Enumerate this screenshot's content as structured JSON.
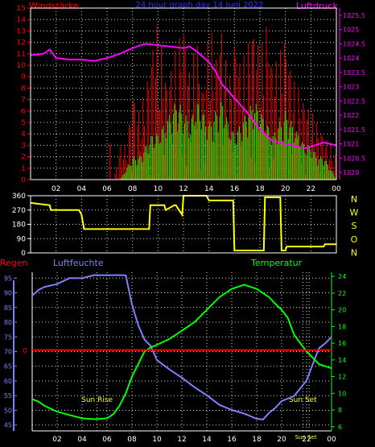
{
  "colors": {
    "background": "#000000",
    "frame": "#ffffff",
    "grid": "#ffffff",
    "wind_avg": "#00ff00",
    "wind_gust": "#ff0000",
    "pressure": "#ff00ff",
    "pressure_axis": "#ff00ff",
    "direction": "#ffff00",
    "humidity": "#8080ff",
    "temperature": "#00ff00",
    "rain": "#ff0000",
    "title": "#3030ff",
    "sun_label": "#ffff00"
  },
  "chart_data": [
    {
      "type": "bar",
      "title": "24 hour graph day 14 Juni 2022",
      "left_label": "Windstärke",
      "right_label": "Luftdruck",
      "x_ticks": [
        "02",
        "04",
        "06",
        "08",
        "10",
        "12",
        "14",
        "16",
        "18",
        "20",
        "22",
        "00"
      ],
      "x_unit": "hours",
      "x_range": [
        0,
        24
      ],
      "y_left_ticks": [
        "0",
        "1",
        "2",
        "3",
        "4",
        "5",
        "6",
        "7",
        "8",
        "9",
        "10",
        "11",
        "12",
        "13",
        "14",
        "15"
      ],
      "y_left_range": [
        0,
        15
      ],
      "y_right_ticks": [
        "1020",
        "1020.5",
        "1021",
        "1021.5",
        "1022",
        "1022.5",
        "1023",
        "1023.5",
        "1024",
        "1024.5",
        "1025",
        "1025.5"
      ],
      "y_right_range": [
        1019.75,
        1025.75
      ],
      "series": [
        {
          "name": "Windstärke",
          "kind": "avg",
          "x": [
            0,
            6.5,
            7,
            7.5,
            8,
            8.5,
            9,
            9.5,
            10,
            10.5,
            11,
            11.5,
            12,
            12.5,
            13,
            13.5,
            14,
            14.5,
            15,
            15.5,
            16,
            16.5,
            17,
            17.5,
            18,
            18.5,
            19,
            19.5,
            20,
            20.5,
            21,
            21.5,
            22,
            22.5,
            23,
            23.5,
            24
          ],
          "values": [
            0,
            0,
            0,
            1,
            2,
            2,
            3,
            4,
            4,
            5,
            6,
            7,
            6,
            5,
            7,
            6,
            5,
            6,
            7,
            5,
            4,
            5,
            6,
            7,
            6,
            5,
            4,
            5,
            6,
            5,
            4,
            3,
            3,
            2,
            2,
            1,
            0
          ]
        },
        {
          "name": "Windböen",
          "kind": "gust",
          "x": [
            0,
            6.5,
            7,
            7.5,
            8,
            8.5,
            9,
            9.5,
            10,
            10.5,
            11,
            11.5,
            12,
            12.5,
            13,
            13.5,
            14,
            14.5,
            15,
            15.5,
            16,
            16.5,
            17,
            17.5,
            18,
            18.5,
            19,
            19.5,
            20,
            20.5,
            21,
            21.5,
            22,
            22.5,
            23,
            23.5,
            24
          ],
          "values": [
            0,
            0,
            3,
            3,
            8,
            6,
            8,
            12,
            14,
            9,
            10,
            12,
            14,
            9,
            13,
            8,
            14,
            11,
            14,
            8,
            13,
            10,
            12,
            14,
            11,
            14,
            10,
            11,
            13,
            9,
            8,
            7,
            6,
            5,
            4,
            3,
            2
          ]
        },
        {
          "name": "Luftdruck",
          "kind": "pressure",
          "x": [
            0,
            1,
            1.5,
            2,
            3,
            4,
            5,
            6,
            7,
            8,
            9,
            10,
            11,
            12,
            12.5,
            13,
            14,
            14.5,
            15,
            16,
            17,
            18,
            19,
            20,
            21,
            21.5,
            22,
            23,
            24
          ],
          "values": [
            1024.1,
            1024.15,
            1024.3,
            1024.0,
            1023.95,
            1023.95,
            1023.9,
            1024.0,
            1024.15,
            1024.35,
            1024.5,
            1024.45,
            1024.4,
            1024.35,
            1024.4,
            1024.25,
            1023.85,
            1023.55,
            1023.1,
            1022.6,
            1022.1,
            1021.5,
            1021.1,
            1021.0,
            1020.9,
            1020.85,
            1020.9,
            1021.05,
            1020.95
          ]
        }
      ]
    },
    {
      "type": "line",
      "x_range": [
        0,
        24
      ],
      "y_left_ticks": [
        "0",
        "90",
        "180",
        "270",
        "360"
      ],
      "y_left_range": [
        0,
        360
      ],
      "right_labels": [
        "N",
        "W",
        "S",
        "O",
        "N"
      ],
      "series": [
        {
          "name": "Windrichtung",
          "x": [
            0,
            1.5,
            1.6,
            3.8,
            4,
            4.2,
            9.3,
            9.4,
            10.5,
            10.6,
            11.3,
            11.4,
            11.9,
            12,
            13.8,
            14,
            15.9,
            16,
            18.3,
            18.4,
            19.6,
            19.7,
            20,
            20.1,
            23,
            23.1,
            24
          ],
          "values": [
            315,
            300,
            270,
            270,
            240,
            150,
            150,
            300,
            300,
            270,
            300,
            300,
            240,
            360,
            360,
            330,
            330,
            15,
            15,
            350,
            350,
            15,
            15,
            40,
            40,
            55,
            55
          ]
        }
      ]
    },
    {
      "type": "line",
      "left_label": "Regen",
      "humidity_label": "Luftfeuchte",
      "right_label": "Temperatur",
      "x_range": [
        0,
        24
      ],
      "x_ticks": [
        "02",
        "04",
        "06",
        "08",
        "10",
        "12",
        "14",
        "16",
        "18",
        "20",
        "22",
        "00"
      ],
      "y_humidity_ticks": [
        "45",
        "50",
        "55",
        "60",
        "65",
        "70",
        "75",
        "80",
        "85",
        "90",
        "95"
      ],
      "y_humidity_range": [
        43,
        97
      ],
      "rain_axis_tick": "0",
      "y_temp_ticks": [
        "6",
        "8",
        "10",
        "12",
        "14",
        "16",
        "18",
        "20",
        "22",
        "24"
      ],
      "y_temp_range": [
        5.5,
        24.5
      ],
      "annotations": [
        {
          "text": "Sun Rise",
          "x": 5.2
        },
        {
          "text": "Sun Set",
          "x": 21.7
        },
        {
          "text": "Sun Set",
          "x": 22.2
        }
      ],
      "series": [
        {
          "name": "Luftfeuchte",
          "x": [
            0,
            0.5,
            1,
            2,
            3,
            4,
            5,
            6,
            7,
            7.5,
            8,
            8.5,
            9,
            9.5,
            10,
            11,
            12,
            13,
            14,
            15,
            16,
            17,
            18,
            18.5,
            19,
            19.5,
            20,
            21,
            22,
            22.5,
            23,
            23.5,
            24
          ],
          "values": [
            89,
            91,
            92,
            93,
            95,
            95,
            96,
            96,
            96,
            96,
            86,
            79,
            74,
            72,
            67,
            64,
            61,
            58,
            55,
            52,
            50,
            49,
            47,
            47,
            49,
            51,
            53,
            55,
            60,
            66,
            71,
            73,
            75
          ]
        },
        {
          "name": "Temperatur",
          "x": [
            0,
            0.5,
            1,
            2,
            3,
            4,
            5,
            6,
            6.5,
            7,
            7.5,
            8,
            8.5,
            9,
            9.5,
            10,
            11,
            12,
            13,
            14,
            15,
            16,
            17,
            18,
            19,
            19.5,
            20,
            20.5,
            21,
            22,
            23,
            24
          ],
          "values": [
            9.3,
            9.0,
            8.5,
            7.8,
            7.4,
            7.0,
            6.9,
            7.0,
            7.5,
            8.5,
            10,
            12,
            13.5,
            15,
            15.5,
            15.8,
            16.5,
            17.5,
            18.5,
            20,
            21.5,
            22.5,
            23,
            22.5,
            21.5,
            20.7,
            20,
            19,
            17,
            15,
            13.5,
            13
          ]
        },
        {
          "name": "Regen",
          "x": [
            0,
            24
          ],
          "values": [
            0,
            0
          ]
        }
      ]
    }
  ]
}
